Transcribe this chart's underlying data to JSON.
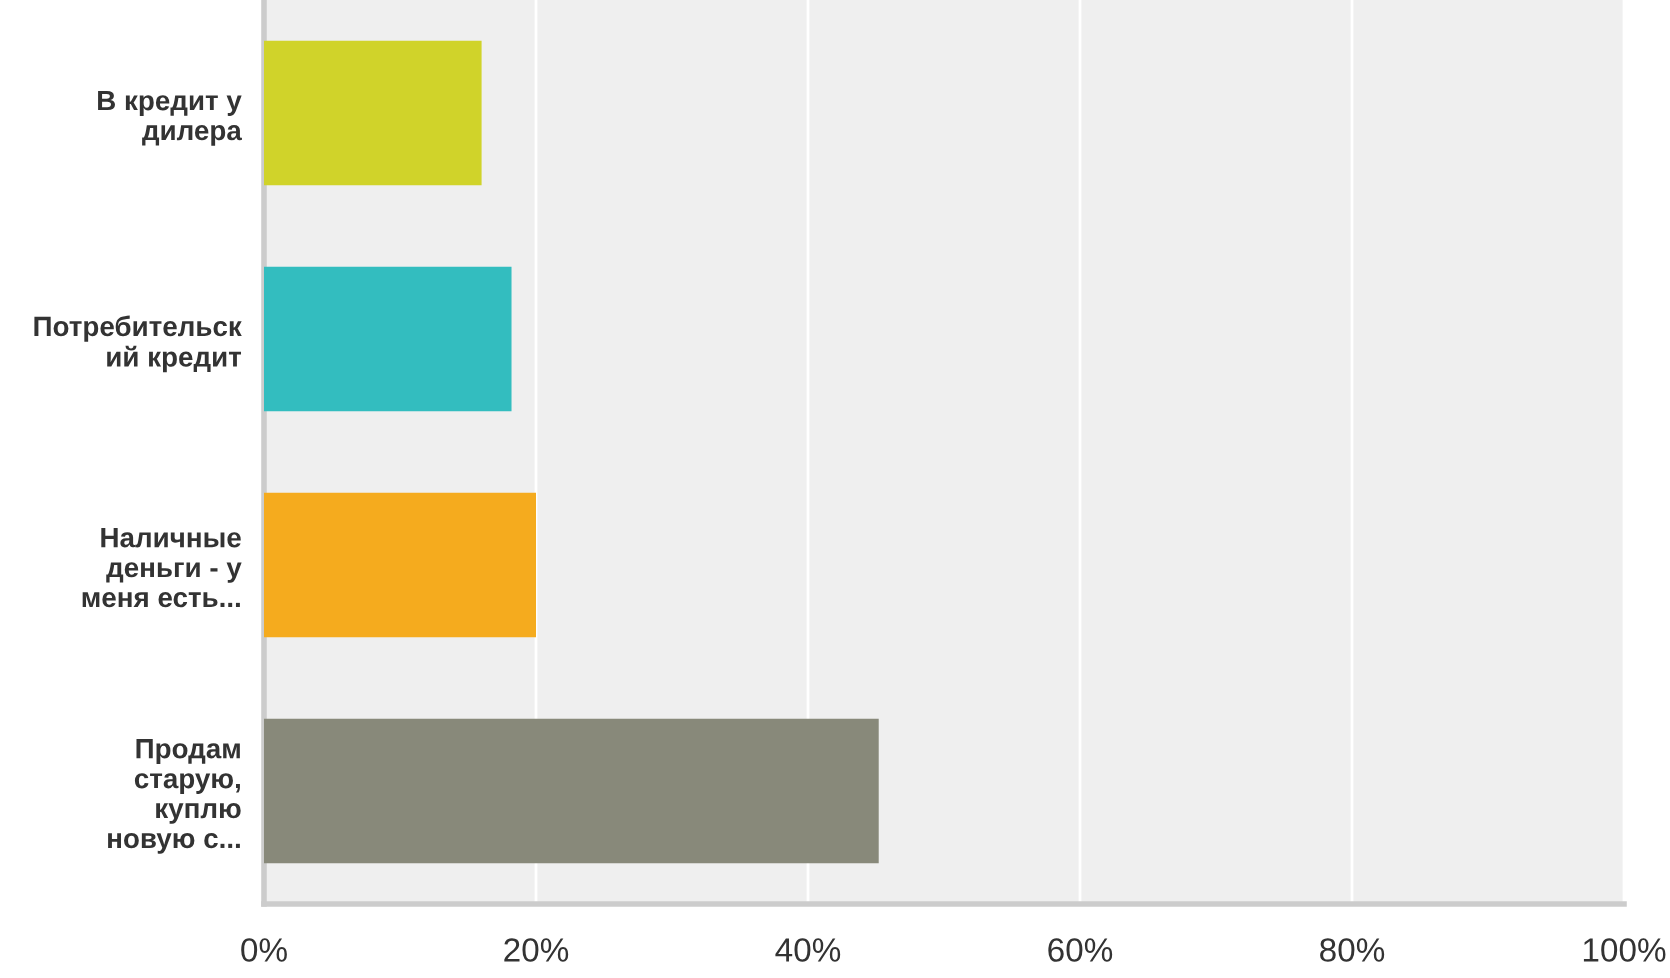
{
  "chart_data": {
    "type": "bar",
    "orientation": "horizontal",
    "categories": [
      "В кредит у\nдилера",
      "Потребительск\nий кредит",
      "Наличные\nденьги - у\nменя есть...",
      "Продам\nстарую,\nкуплю\nновую с..."
    ],
    "values": [
      16.0,
      18.2,
      20.0,
      45.2
    ],
    "colors": [
      "#d0d32a",
      "#33bdbf",
      "#f5ab1e",
      "#88897a"
    ],
    "xlim": [
      0,
      100
    ],
    "xticks": [
      {
        "value": 0,
        "label": "0%"
      },
      {
        "value": 20,
        "label": "20%"
      },
      {
        "value": 40,
        "label": "40%"
      },
      {
        "value": 60,
        "label": "60%"
      },
      {
        "value": 80,
        "label": "80%"
      },
      {
        "value": 100,
        "label": "100%"
      }
    ],
    "grid": "x"
  }
}
